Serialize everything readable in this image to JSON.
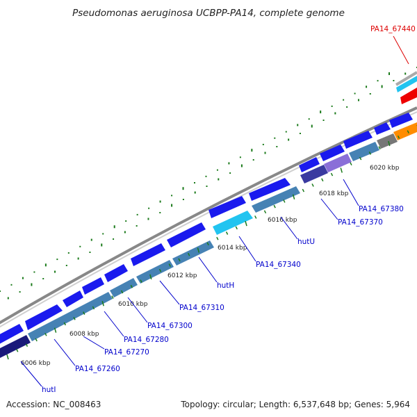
{
  "title": "Pseudomonas aeruginosa UCBPP-PA14, complete genome",
  "footer": {
    "accession": "Accession: NC_008463",
    "summary": "Topology: circular; Length: 6,537,648 bp; Genes: 5,964"
  },
  "ticks": [
    "6006 kbp",
    "6008 kbp",
    "6010 kbp",
    "6012 kbp",
    "6014 kbp",
    "6016 kbp",
    "6018 kbp",
    "6020 kbp"
  ],
  "genes": [
    {
      "label": "hutI",
      "color": "#0000cc"
    },
    {
      "label": "PA14_67260",
      "color": "#0000cc"
    },
    {
      "label": "PA14_67270",
      "color": "#0000cc"
    },
    {
      "label": "PA14_67280",
      "color": "#0000cc"
    },
    {
      "label": "PA14_67300",
      "color": "#0000cc"
    },
    {
      "label": "PA14_67310",
      "color": "#0000cc"
    },
    {
      "label": "hutH",
      "color": "#0000cc"
    },
    {
      "label": "PA14_67340",
      "color": "#0000cc"
    },
    {
      "label": "hutU",
      "color": "#0000cc"
    },
    {
      "label": "PA14_67370",
      "color": "#0000cc"
    },
    {
      "label": "PA14_67380",
      "color": "#0000cc"
    },
    {
      "label": "PA14_67440",
      "color": "#dd0000"
    }
  ],
  "colors": {
    "forward_gene": "#1a1aee",
    "reverse_gene": "#4682b4",
    "highlight_gene": "#22c4f0",
    "dark_gene": "#1a1a7a",
    "purple_gene": "#8a6fd8",
    "red_gene": "#ee0000",
    "orange_gene": "#ff8c00",
    "gray_gene": "#777777",
    "backbone": "#999999",
    "gc_dots": "#1a7a1a"
  }
}
